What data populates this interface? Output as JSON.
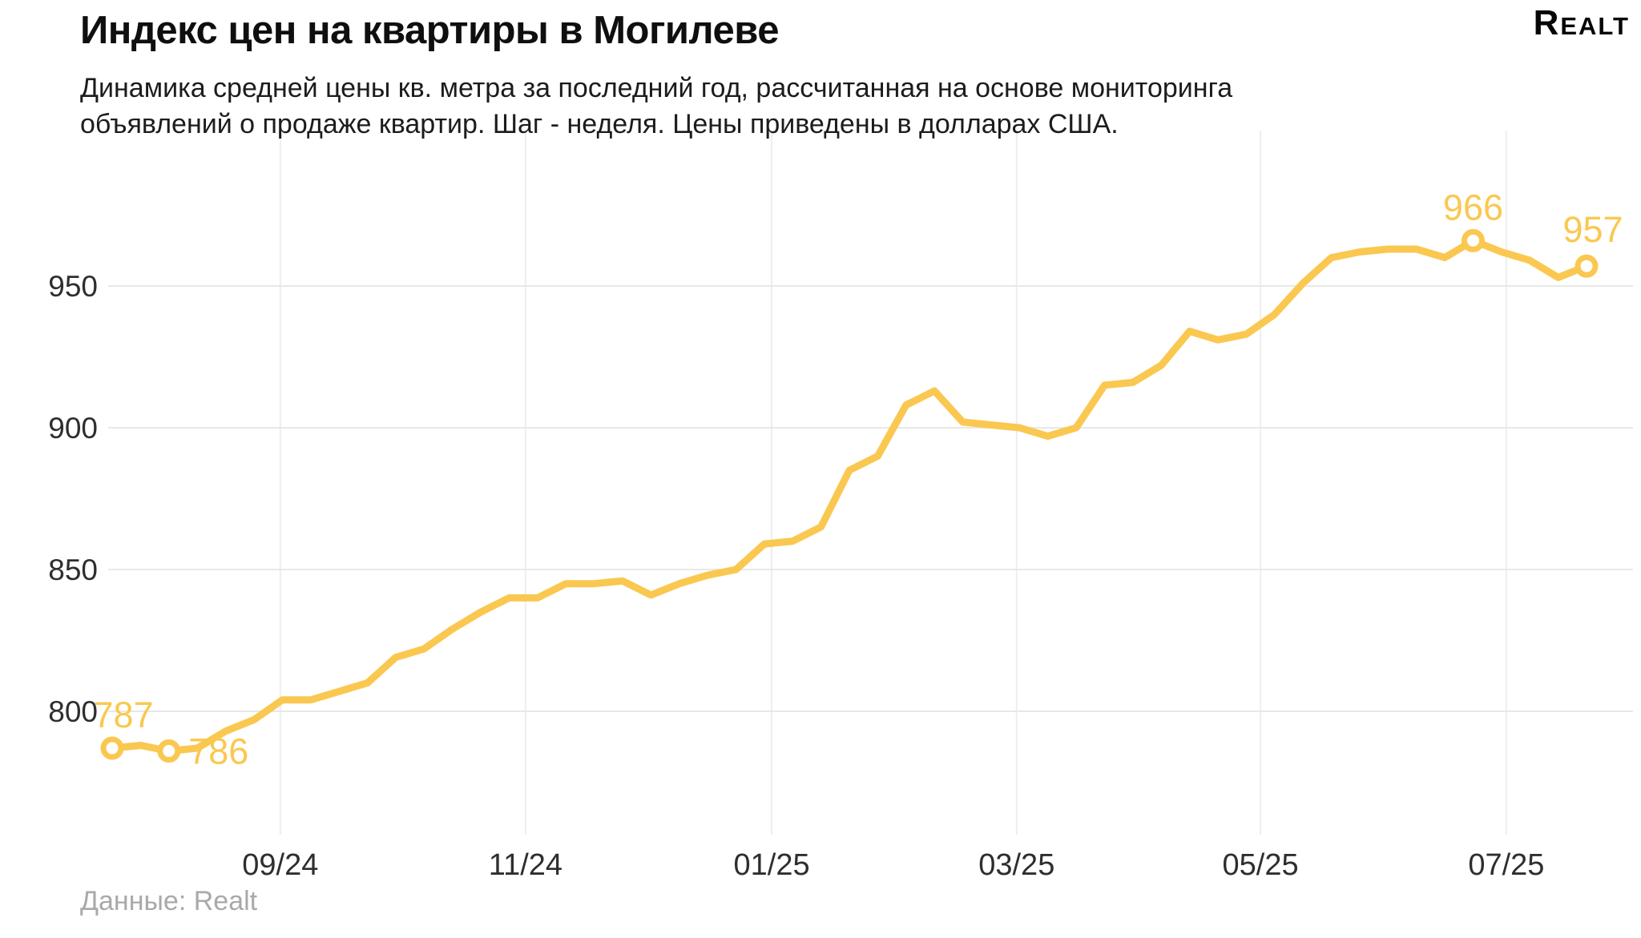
{
  "header": {
    "title": "Индекс цен на квартиры в Могилеве",
    "subtitle_line1": "Динамика средней цены кв. метра за последний год, рассчитанная на основе мониторинга",
    "subtitle_line2": "объявлений о продаже квартир. Шаг - неделя. Цены приведены в долларах США.",
    "logo": "Realt"
  },
  "chart_data": {
    "type": "line",
    "title": "Индекс цен на квартиры в Могилеве",
    "step": "неделя",
    "currency": "доллары США",
    "series": [
      {
        "name": "Средняя цена кв. метра, $",
        "values": [
          787,
          788,
          786,
          787,
          793,
          797,
          804,
          804,
          807,
          810,
          819,
          822,
          829,
          835,
          840,
          840,
          845,
          845,
          846,
          841,
          845,
          848,
          850,
          859,
          860,
          865,
          885,
          890,
          908,
          913,
          902,
          901,
          900,
          897,
          900,
          915,
          916,
          922,
          934,
          931,
          933,
          940,
          951,
          960,
          962,
          963,
          963,
          960,
          966,
          962,
          959,
          953,
          957
        ]
      }
    ],
    "ylim": [
      760,
      995
    ],
    "grid": true,
    "y_ticks": [
      {
        "value": 950,
        "label": "950"
      },
      {
        "value": 900,
        "label": "900"
      },
      {
        "value": 850,
        "label": "850"
      },
      {
        "value": 800,
        "label": "800"
      }
    ],
    "x_ticks": [
      {
        "label": "09/24",
        "week": 5.93
      },
      {
        "label": "11/24",
        "week": 14.58
      },
      {
        "label": "01/25",
        "week": 23.26
      },
      {
        "label": "03/25",
        "week": 31.9
      },
      {
        "label": "05/25",
        "week": 40.5
      },
      {
        "label": "07/25",
        "week": 49.17
      }
    ],
    "annotations": [
      {
        "index": 0,
        "label": "787"
      },
      {
        "index": 2,
        "label": "786"
      },
      {
        "index": 48,
        "label": "966"
      },
      {
        "index": 52,
        "label": "957"
      }
    ],
    "marker_indices": [
      0,
      2,
      48,
      52
    ],
    "line_color": "#FAC850",
    "h_grid_color": "#e8e8e8",
    "v_grid_color": "#eeeeee",
    "tick_color": "#2e2e2e"
  },
  "footer": {
    "source": "Данные: Realt"
  }
}
